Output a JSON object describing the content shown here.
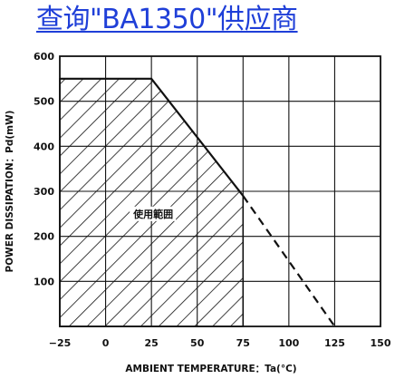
{
  "header": {
    "search_link": "查询\"BA1350\"供应商",
    "link_color": "#1f3fd8"
  },
  "chart_data": {
    "type": "line",
    "title": "",
    "xlabel": "AMBIENT TEMPERATURE：Ta(°C)",
    "ylabel": "POWER DISSIPATION：Pd(mW)",
    "xlim": [
      -25,
      150
    ],
    "ylim": [
      0,
      600
    ],
    "x_ticks": [
      -25,
      0,
      25,
      50,
      75,
      100,
      125,
      150
    ],
    "x_tick_labels": [
      "−25",
      "0",
      "25",
      "50",
      "75",
      "100",
      "125",
      "150"
    ],
    "y_ticks": [
      100,
      200,
      300,
      400,
      500,
      600
    ],
    "y_tick_labels": [
      "100",
      "200",
      "300",
      "400",
      "500",
      "600"
    ],
    "grid": true,
    "series": [
      {
        "style": "solid",
        "points": [
          [
            -25,
            550
          ],
          [
            25,
            550
          ],
          [
            75,
            290
          ]
        ]
      },
      {
        "style": "dashed",
        "points": [
          [
            75,
            290
          ],
          [
            125,
            0
          ]
        ]
      }
    ],
    "hatched_region": {
      "label": "使用範囲",
      "points": [
        [
          -25,
          0
        ],
        [
          -25,
          550
        ],
        [
          25,
          550
        ],
        [
          75,
          290
        ],
        [
          75,
          0
        ]
      ]
    }
  }
}
